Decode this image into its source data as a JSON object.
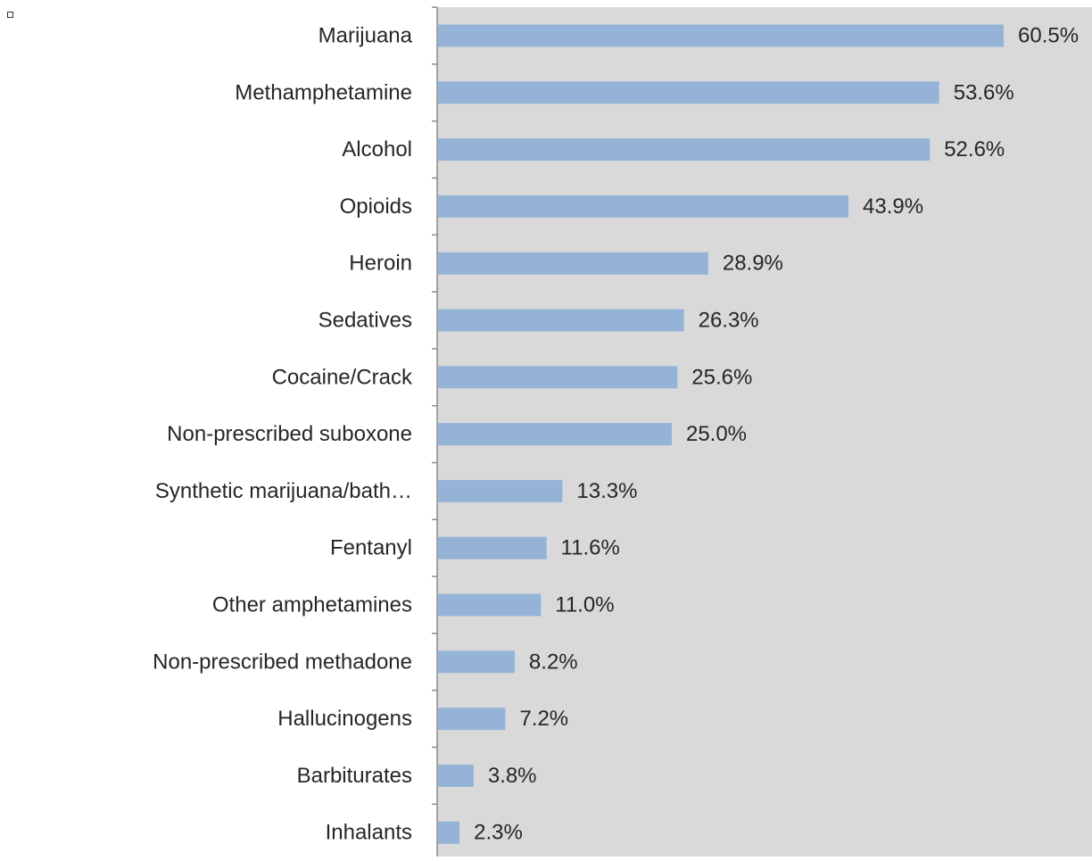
{
  "chart_data": {
    "type": "bar",
    "orientation": "horizontal",
    "title": "",
    "xlabel": "",
    "ylabel": "",
    "categories": [
      "Marijuana",
      "Methamphetamine",
      "Alcohol",
      "Opioids",
      "Heroin",
      "Sedatives",
      "Cocaine/Crack",
      "Non-prescribed suboxone",
      "Synthetic marijuana/bath…",
      "Fentanyl",
      "Other amphetamines",
      "Non-prescribed methadone",
      "Hallucinogens",
      "Barbiturates",
      "Inhalants"
    ],
    "values": [
      60.5,
      53.6,
      52.6,
      43.9,
      28.9,
      26.3,
      25.6,
      25.0,
      13.3,
      11.6,
      11.0,
      8.2,
      7.2,
      3.8,
      2.3
    ],
    "value_labels": [
      "60.5%",
      "53.6%",
      "52.6%",
      "43.9%",
      "28.9%",
      "26.3%",
      "25.6%",
      "25.0%",
      "13.3%",
      "11.6%",
      "11.0%",
      "8.2%",
      "7.2%",
      "3.8%",
      "2.3%"
    ],
    "xlim": [
      0,
      72.0
    ],
    "grid": false,
    "legend": "none",
    "colors": {
      "bar": "#95b3d7",
      "plot_background": "#d9d9d9",
      "axis": "#8c8c8c",
      "text": "#262626"
    }
  }
}
